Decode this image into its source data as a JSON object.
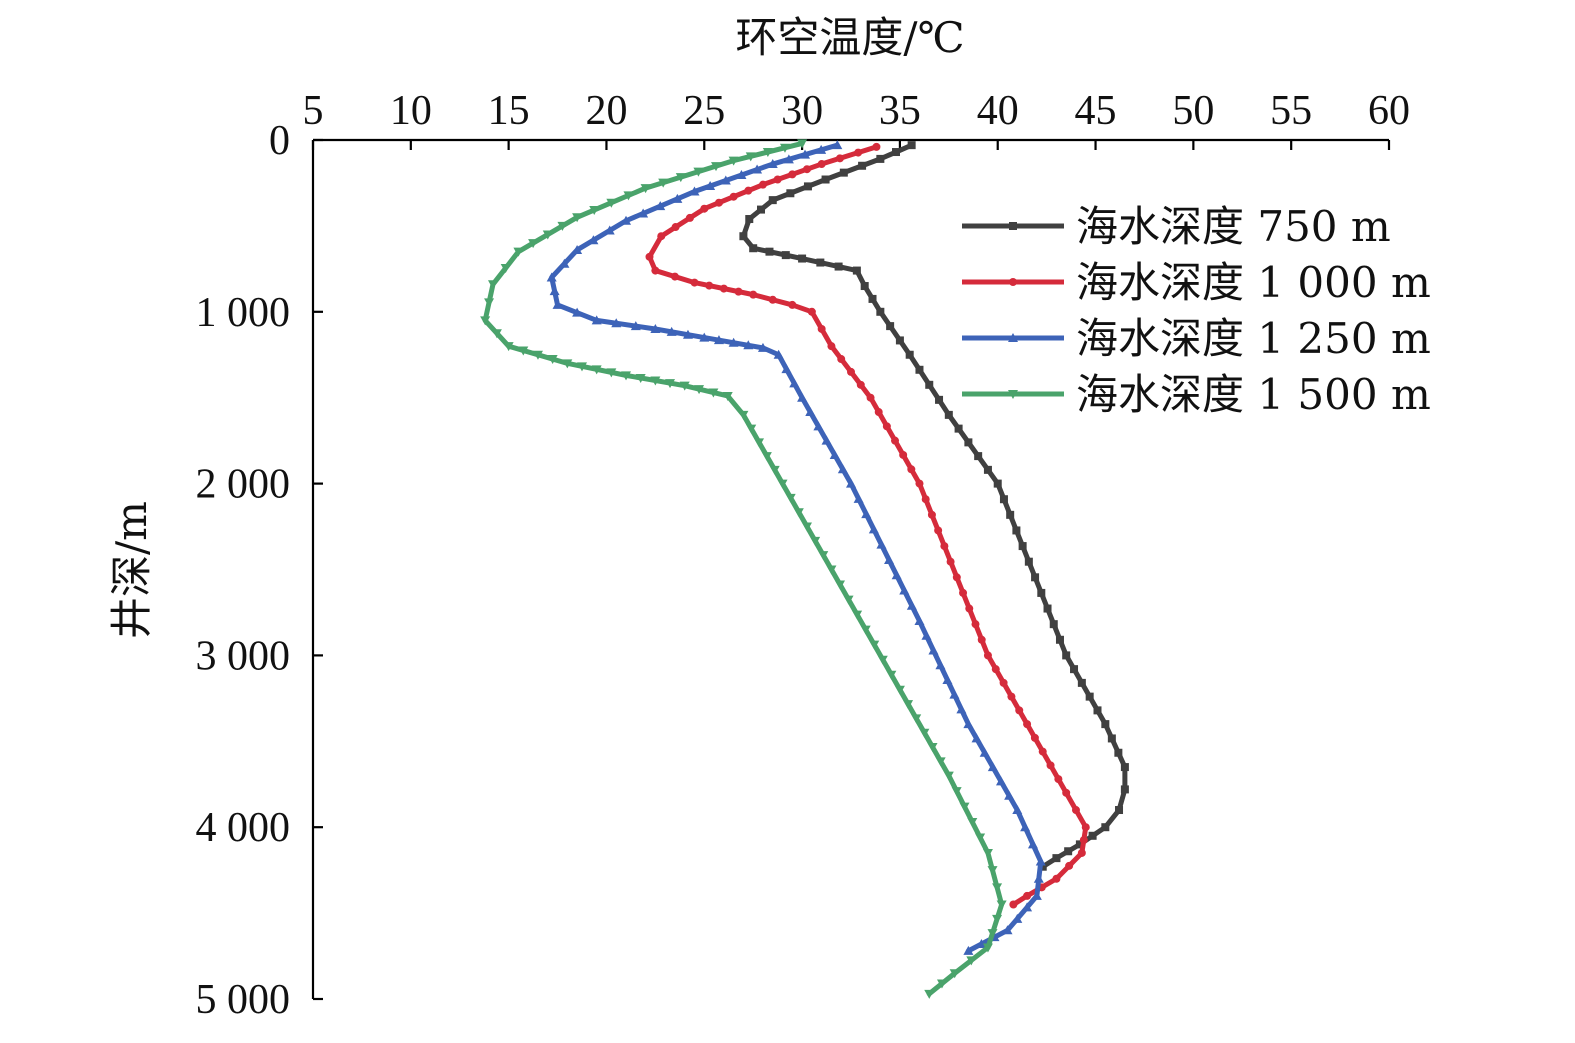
{
  "chart_data": {
    "type": "line",
    "title": "",
    "xlabel": "环空温度/℃",
    "ylabel": "井深/m",
    "xlim": [
      5,
      60
    ],
    "ylim": [
      0,
      5000
    ],
    "x_axis_position": "top",
    "y_inverted": true,
    "xticks": [
      5,
      10,
      15,
      20,
      25,
      30,
      35,
      40,
      45,
      50,
      55,
      60
    ],
    "xtick_labels": [
      "5",
      "10",
      "15",
      "20",
      "25",
      "30",
      "35",
      "40",
      "45",
      "50",
      "55",
      "60"
    ],
    "yticks": [
      0,
      1000,
      2000,
      3000,
      4000,
      5000
    ],
    "ytick_labels": [
      "0",
      "1 000",
      "2 000",
      "3 000",
      "4 000",
      "5 000"
    ],
    "grid": false,
    "legend_position": "top-right",
    "series": [
      {
        "name": "海水深度 750 m",
        "color": "#404040",
        "marker": "square",
        "points": [
          [
            35.6,
            30
          ],
          [
            34.0,
            110
          ],
          [
            31.2,
            230
          ],
          [
            28.5,
            350
          ],
          [
            27.3,
            460
          ],
          [
            27.0,
            560
          ],
          [
            27.5,
            630
          ],
          [
            30.0,
            690
          ],
          [
            32.8,
            760
          ],
          [
            33.2,
            850
          ],
          [
            34.0,
            1000
          ],
          [
            35.5,
            1250
          ],
          [
            37.5,
            1600
          ],
          [
            40.0,
            2000
          ],
          [
            43.5,
            3000
          ],
          [
            45.5,
            3400
          ],
          [
            46.5,
            3650
          ],
          [
            46.5,
            3780
          ],
          [
            46.2,
            3900
          ],
          [
            45.5,
            4000
          ],
          [
            44.2,
            4100
          ],
          [
            43.0,
            4180
          ],
          [
            42.3,
            4230
          ]
        ]
      },
      {
        "name": "海水深度 1 000 m",
        "color": "#d52b3b",
        "marker": "circle",
        "points": [
          [
            33.8,
            40
          ],
          [
            31.0,
            140
          ],
          [
            28.0,
            260
          ],
          [
            25.0,
            400
          ],
          [
            22.8,
            560
          ],
          [
            22.2,
            680
          ],
          [
            22.5,
            760
          ],
          [
            24.5,
            830
          ],
          [
            27.5,
            900
          ],
          [
            29.5,
            960
          ],
          [
            30.5,
            1000
          ],
          [
            31.5,
            1200
          ],
          [
            33.5,
            1500
          ],
          [
            36.0,
            2000
          ],
          [
            39.5,
            3000
          ],
          [
            41.5,
            3400
          ],
          [
            43.5,
            3800
          ],
          [
            44.5,
            4000
          ],
          [
            44.3,
            4150
          ],
          [
            43.0,
            4300
          ],
          [
            41.5,
            4400
          ],
          [
            40.8,
            4450
          ]
        ]
      },
      {
        "name": "海水深度 1 250 m",
        "color": "#3d63b8",
        "marker": "triangle-up",
        "points": [
          [
            31.8,
            30
          ],
          [
            28.5,
            140
          ],
          [
            24.5,
            300
          ],
          [
            21.0,
            470
          ],
          [
            18.5,
            640
          ],
          [
            17.2,
            800
          ],
          [
            17.5,
            960
          ],
          [
            19.5,
            1050
          ],
          [
            22.5,
            1100
          ],
          [
            25.0,
            1150
          ],
          [
            28.0,
            1210
          ],
          [
            28.8,
            1250
          ],
          [
            30.0,
            1500
          ],
          [
            32.5,
            2000
          ],
          [
            36.0,
            2800
          ],
          [
            38.5,
            3400
          ],
          [
            41.0,
            3900
          ],
          [
            42.2,
            4200
          ],
          [
            42.0,
            4400
          ],
          [
            40.5,
            4600
          ],
          [
            38.5,
            4720
          ]
        ]
      },
      {
        "name": "海水深度 1 500 m",
        "color": "#4aa36b",
        "marker": "triangle-down",
        "points": [
          [
            30.0,
            20
          ],
          [
            26.5,
            120
          ],
          [
            22.0,
            280
          ],
          [
            18.5,
            450
          ],
          [
            15.5,
            650
          ],
          [
            14.2,
            840
          ],
          [
            13.8,
            1050
          ],
          [
            15.0,
            1200
          ],
          [
            18.0,
            1300
          ],
          [
            21.0,
            1370
          ],
          [
            24.0,
            1430
          ],
          [
            26.2,
            1490
          ],
          [
            27.0,
            1600
          ],
          [
            29.0,
            2000
          ],
          [
            31.5,
            2500
          ],
          [
            35.0,
            3200
          ],
          [
            37.5,
            3700
          ],
          [
            39.5,
            4150
          ],
          [
            40.2,
            4450
          ],
          [
            39.5,
            4700
          ],
          [
            37.8,
            4850
          ],
          [
            36.5,
            4970
          ]
        ]
      }
    ]
  }
}
